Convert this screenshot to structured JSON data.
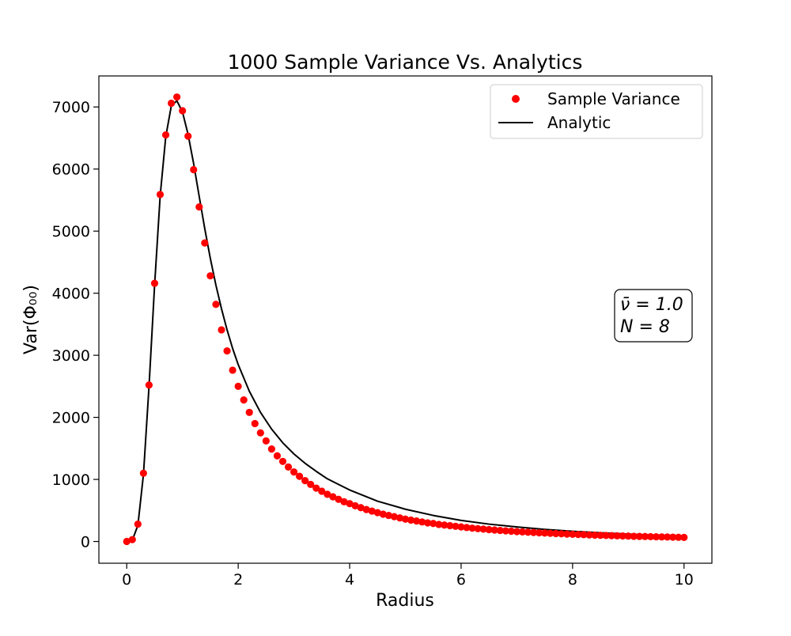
{
  "chart_data": {
    "type": "scatter",
    "title": "1000 Sample Variance Vs. Analytics",
    "xlabel": "Radius",
    "ylabel": "Var(Φ₀₀)",
    "xlim": [
      -0.5,
      10.5
    ],
    "ylim": [
      -350,
      7500
    ],
    "xticks": [
      0,
      2,
      4,
      6,
      8,
      10
    ],
    "yticks": [
      0,
      1000,
      2000,
      3000,
      4000,
      5000,
      6000,
      7000
    ],
    "xtick_labels": [
      "0",
      "2",
      "4",
      "6",
      "8",
      "10"
    ],
    "ytick_labels": [
      "0",
      "1000",
      "2000",
      "3000",
      "4000",
      "5000",
      "6000",
      "7000"
    ],
    "grid": false,
    "legend_placement": "top-right",
    "annotation": {
      "line1": "ν̄ = 1.0",
      "line2": "N = 8",
      "placement": "right-middle"
    },
    "colors": {
      "sample": "#ff0000",
      "analytic": "#000000"
    },
    "series": [
      {
        "name": "Sample Variance",
        "kind": "scatter",
        "x": [
          0.0,
          0.1,
          0.2,
          0.3,
          0.4,
          0.5,
          0.6,
          0.7,
          0.8,
          0.9,
          1.0,
          1.1,
          1.2,
          1.3,
          1.4,
          1.5,
          1.6,
          1.7,
          1.8,
          1.9,
          2.0,
          2.1,
          2.2,
          2.3,
          2.4,
          2.5,
          2.6,
          2.7,
          2.8,
          2.9,
          3.0,
          3.1,
          3.2,
          3.3,
          3.4,
          3.5,
          3.6,
          3.7,
          3.8,
          3.9,
          4.0,
          4.1,
          4.2,
          4.3,
          4.4,
          4.5,
          4.6,
          4.7,
          4.8,
          4.9,
          5.0,
          5.1,
          5.2,
          5.3,
          5.4,
          5.5,
          5.6,
          5.7,
          5.8,
          5.9,
          6.0,
          6.1,
          6.2,
          6.3,
          6.4,
          6.5,
          6.6,
          6.7,
          6.8,
          6.9,
          7.0,
          7.1,
          7.2,
          7.3,
          7.4,
          7.5,
          7.6,
          7.7,
          7.8,
          7.9,
          8.0,
          8.1,
          8.2,
          8.3,
          8.4,
          8.5,
          8.6,
          8.7,
          8.8,
          8.9,
          9.0,
          9.1,
          9.2,
          9.3,
          9.4,
          9.5,
          9.6,
          9.7,
          9.8,
          9.9,
          10.0
        ],
        "values": [
          0,
          30,
          280,
          1100,
          2520,
          4160,
          5590,
          6550,
          7060,
          7160,
          6940,
          6530,
          5990,
          5390,
          4810,
          4280,
          3820,
          3410,
          3070,
          2760,
          2500,
          2280,
          2080,
          1900,
          1750,
          1620,
          1490,
          1380,
          1290,
          1200,
          1120,
          1050,
          980,
          920,
          860,
          810,
          760,
          720,
          680,
          640,
          610,
          575,
          545,
          515,
          490,
          465,
          440,
          420,
          400,
          380,
          360,
          345,
          330,
          315,
          300,
          290,
          275,
          265,
          255,
          245,
          235,
          225,
          215,
          207,
          200,
          192,
          185,
          178,
          172,
          166,
          160,
          155,
          150,
          145,
          140,
          136,
          132,
          128,
          124,
          120,
          116,
          113,
          110,
          106,
          103,
          100,
          97,
          94,
          92,
          89,
          87,
          84,
          82,
          80,
          78,
          76,
          74,
          72,
          70,
          68,
          66
        ]
      },
      {
        "name": "Analytic",
        "kind": "line",
        "x": [
          0.0,
          0.1,
          0.2,
          0.3,
          0.4,
          0.5,
          0.6,
          0.7,
          0.8,
          0.9,
          1.0,
          1.1,
          1.2,
          1.3,
          1.4,
          1.5,
          1.6,
          1.7,
          1.8,
          1.9,
          2.0,
          2.2,
          2.4,
          2.6,
          2.8,
          3.0,
          3.2,
          3.4,
          3.6,
          3.8,
          4.0,
          4.5,
          5.0,
          5.5,
          6.0,
          6.5,
          7.0,
          7.5,
          8.0,
          8.5,
          9.0,
          9.5,
          10.0
        ],
        "values": [
          0,
          20,
          260,
          1080,
          2500,
          4130,
          5570,
          6520,
          7020,
          7100,
          6920,
          6560,
          6090,
          5560,
          5040,
          4560,
          4130,
          3750,
          3410,
          3110,
          2850,
          2420,
          2080,
          1810,
          1590,
          1410,
          1260,
          1130,
          1010,
          920,
          830,
          650,
          520,
          420,
          340,
          280,
          235,
          195,
          165,
          140,
          120,
          100,
          85
        ]
      }
    ]
  }
}
